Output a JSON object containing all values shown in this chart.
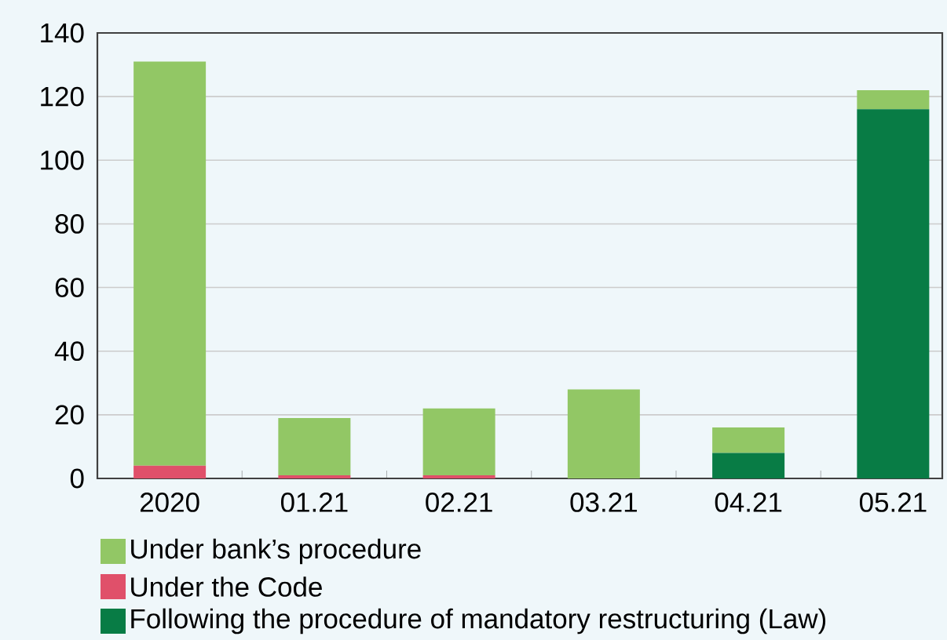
{
  "chart_data": {
    "type": "bar",
    "stacked": true,
    "categories": [
      "2020",
      "01.21",
      "02.21",
      "03.21",
      "04.21",
      "05.21"
    ],
    "series": [
      {
        "name": "Under the Code",
        "color": "#e0506a",
        "values": [
          4,
          1,
          1,
          0,
          0,
          0
        ]
      },
      {
        "name": "Following the procedure of mandatory restructuring (Law)",
        "color": "#087c45",
        "values": [
          0,
          0,
          0,
          0,
          8,
          116
        ]
      },
      {
        "name": "Under bank’s procedure",
        "color": "#92c765",
        "values": [
          127,
          18,
          21,
          28,
          8,
          6
        ]
      }
    ],
    "ylim": [
      0,
      140
    ],
    "yticks": [
      0,
      20,
      40,
      60,
      80,
      100,
      120,
      140
    ],
    "grid": "y",
    "legend": "bottom"
  }
}
